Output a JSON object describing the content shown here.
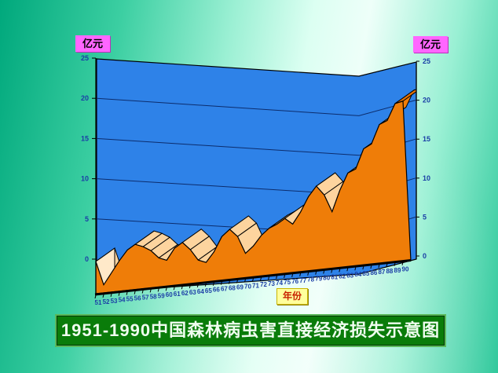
{
  "labels": {
    "y_axis_left_unit": "亿元",
    "y_axis_right_unit": "亿元",
    "x_axis_unit": "年份"
  },
  "title": {
    "text": "1951-1990中国森林病虫害直接经济损失示意图"
  },
  "chart_data": {
    "type": "area",
    "subtype": "3d-ribbon",
    "title": "1951-1990中国森林病虫害直接经济损失示意图",
    "xlabel": "年份",
    "ylabel": "亿元",
    "categories": [
      "51",
      "52",
      "53",
      "54",
      "55",
      "56",
      "57",
      "58",
      "59",
      "60",
      "61",
      "62",
      "63",
      "64",
      "65",
      "66",
      "67",
      "68",
      "69",
      "70",
      "71",
      "72",
      "73",
      "74",
      "75",
      "76",
      "77",
      "78",
      "79",
      "80",
      "81",
      "82",
      "83",
      "84",
      "85",
      "86",
      "87",
      "88",
      "89",
      "90"
    ],
    "values": [
      4.0,
      1.0,
      2.4,
      3.8,
      5.0,
      5.6,
      5.2,
      4.6,
      3.6,
      3.2,
      4.6,
      5.2,
      4.2,
      2.8,
      2.4,
      3.6,
      5.4,
      6.2,
      5.2,
      3.0,
      3.8,
      5.0,
      5.8,
      6.2,
      6.8,
      6.0,
      7.4,
      9.2,
      10.4,
      9.2,
      7.0,
      9.6,
      11.6,
      12.0,
      14.4,
      14.9,
      17.2,
      17.6,
      19.6,
      19.8
    ],
    "ylim": [
      0,
      25
    ],
    "yticks": [
      0,
      5,
      10,
      15,
      20,
      25
    ],
    "grid": true,
    "legend": "none",
    "colors": {
      "wall": "#2e82e8",
      "gridline": "#0c2c6c",
      "ribbon_front": "#ef7d08",
      "ribbon_top": "#fdd49e",
      "ribbon_top_peak": "#e37206",
      "ribbon_end_cap": "#ffe9c9",
      "outline": "#000000",
      "tick_label": "#1b3ea6"
    }
  }
}
